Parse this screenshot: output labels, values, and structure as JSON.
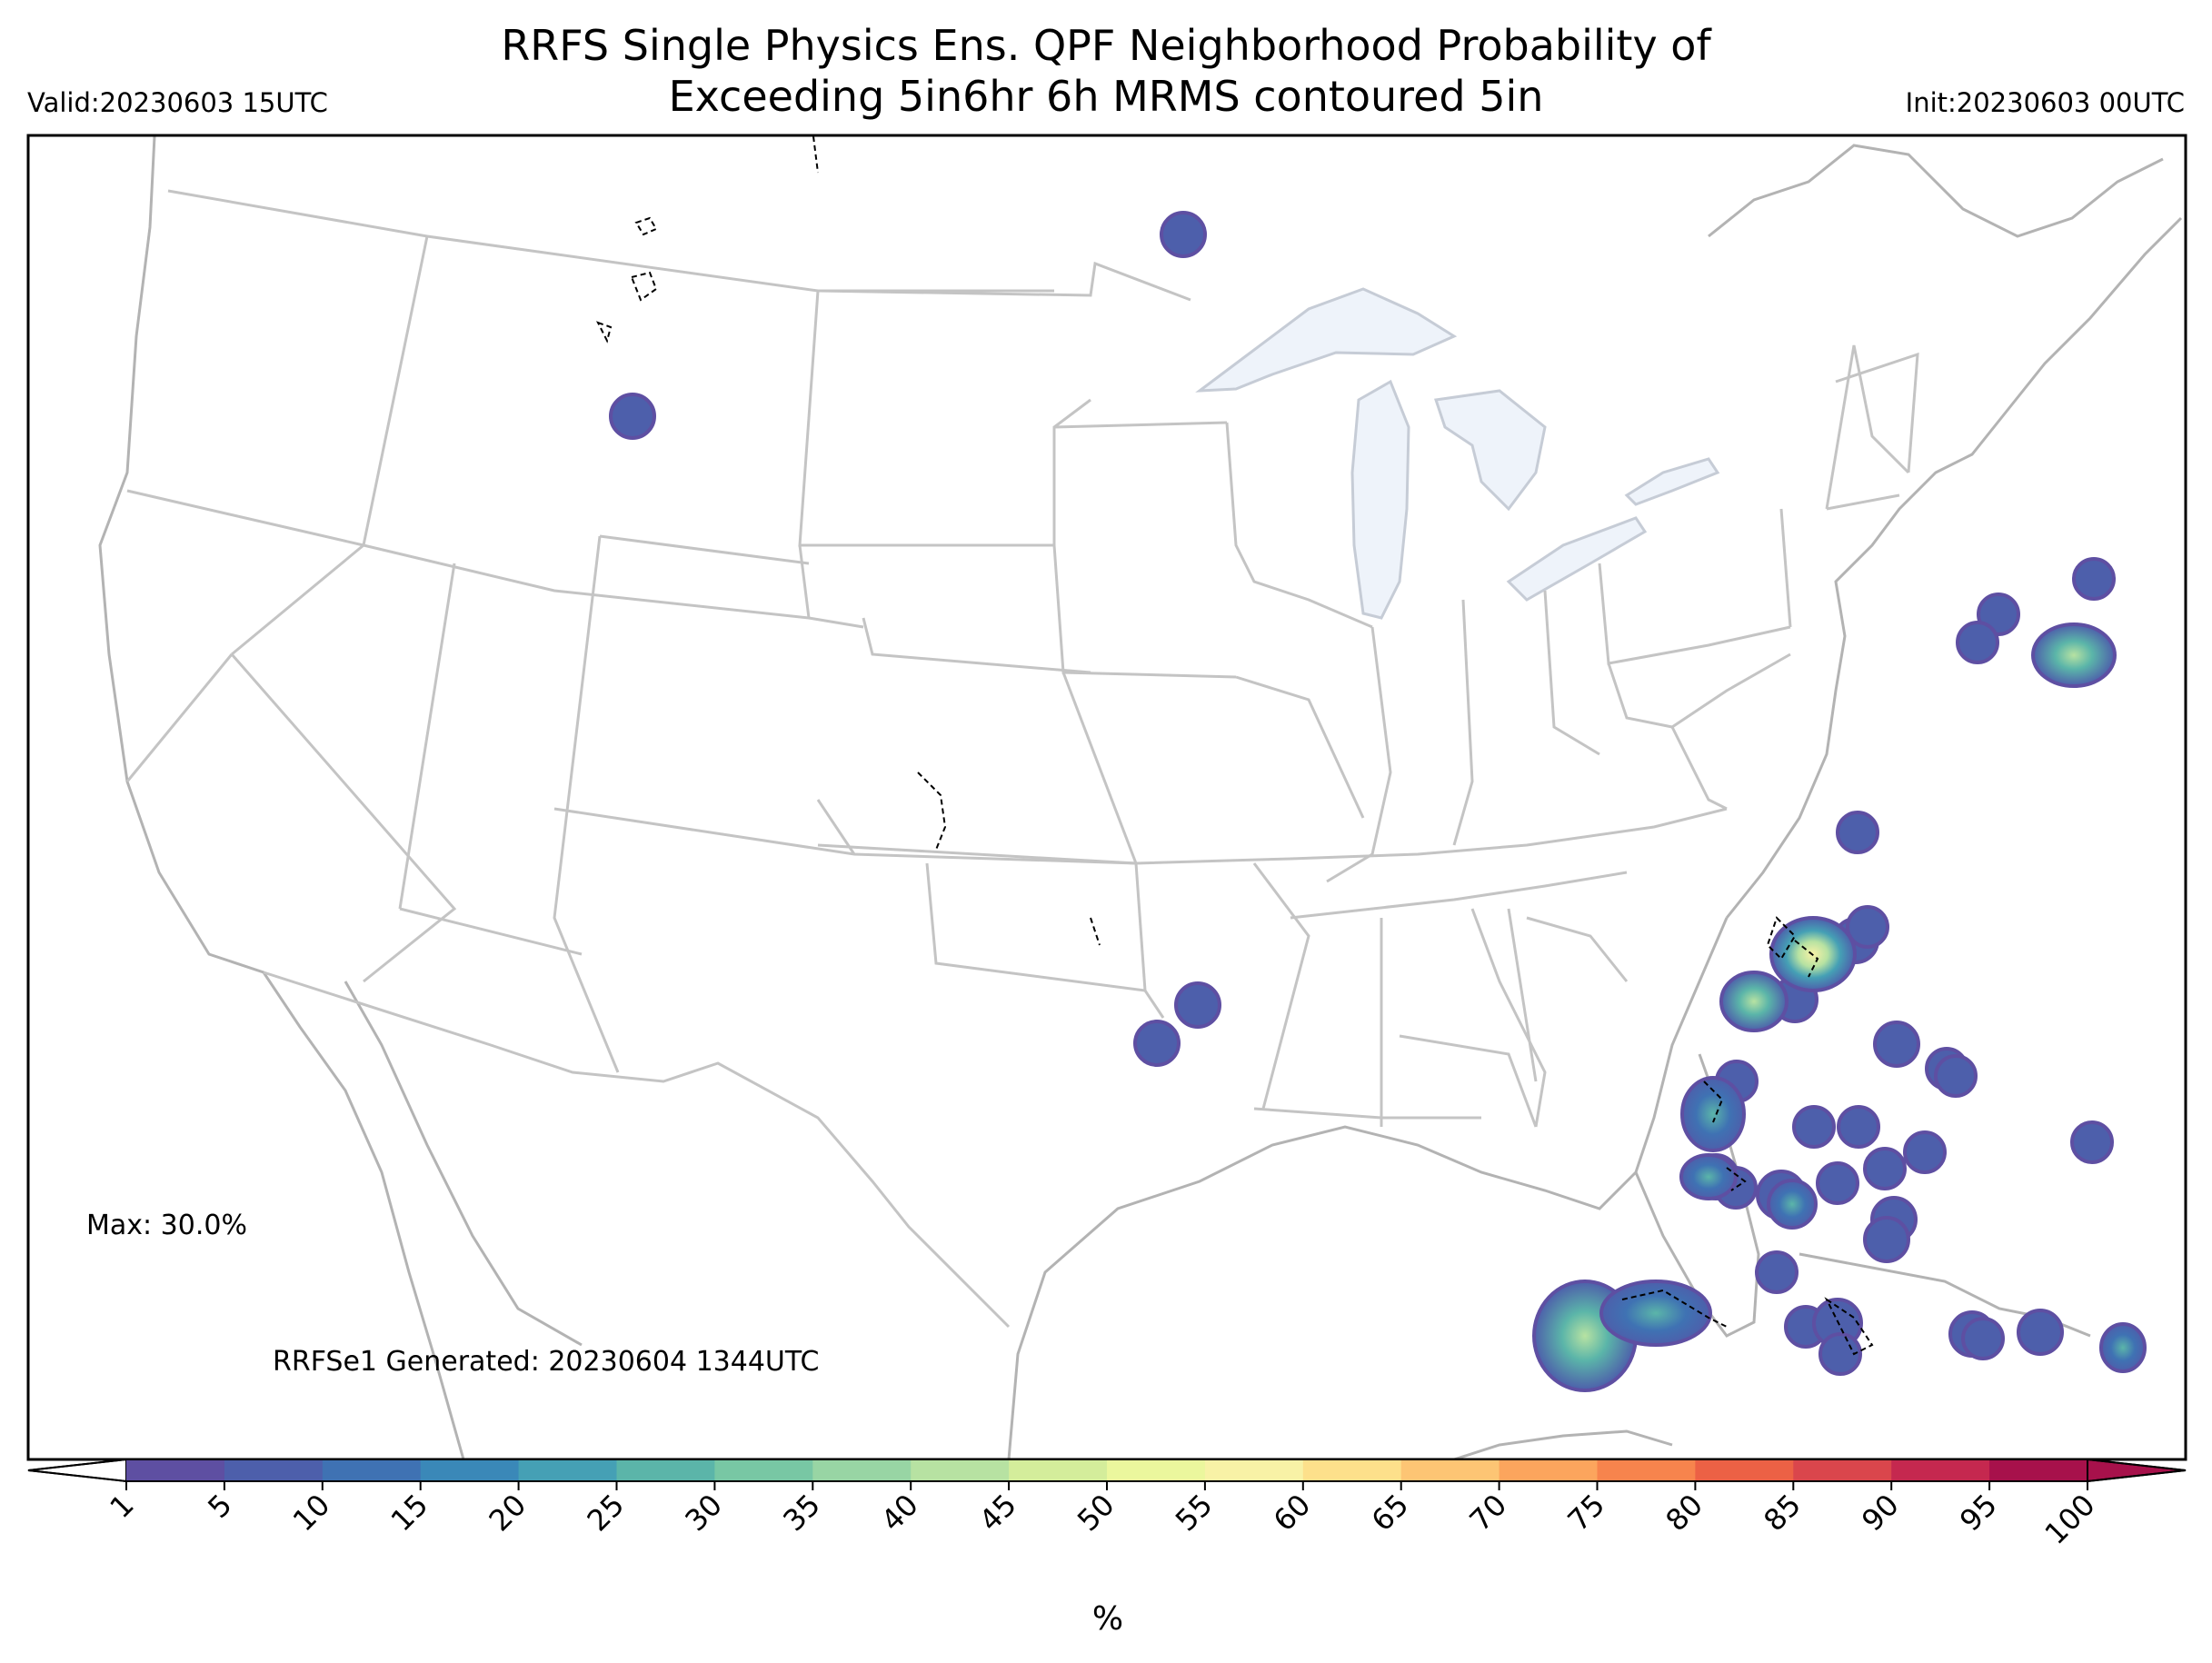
{
  "header": {
    "title_line1": "RRFS Single Physics Ens. QPF Neighborhood Probability of",
    "title_line2": "Exceeding 5in6hr 6h MRMS contoured 5in",
    "valid": "Valid:20230603 15UTC",
    "init": "Init:20230603 00UTC"
  },
  "map": {
    "max_label": "Max: 30.0%",
    "generated_label": "RRFSe1 Generated: 20230604 1344UTC",
    "colors": {
      "state_line": "#c4c4c4",
      "coast_line": "#b3b3b3",
      "lake_fill": "#eef3fa",
      "contour": "#000000"
    }
  },
  "colorbar": {
    "ticks": [
      "1",
      "5",
      "10",
      "15",
      "20",
      "25",
      "30",
      "35",
      "40",
      "45",
      "50",
      "55",
      "60",
      "65",
      "70",
      "75",
      "80",
      "85",
      "90",
      "95",
      "100"
    ],
    "unit_label": "%",
    "colors": [
      "#5e4fa2",
      "#4d5fab",
      "#3f72b3",
      "#3a88b8",
      "#45a0b5",
      "#5bb5a9",
      "#78c7a4",
      "#98d5a4",
      "#b7e2a2",
      "#d4ed9b",
      "#ebf79d",
      "#f8f2a6",
      "#fde08b",
      "#fdc574",
      "#fca55d",
      "#f7844d",
      "#ec6145",
      "#da464c",
      "#c5284f",
      "#a7114b"
    ]
  }
}
